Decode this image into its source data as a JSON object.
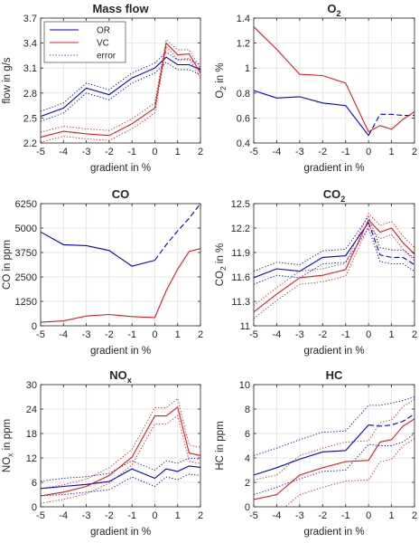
{
  "figure": {
    "legend": [
      {
        "label": "OR",
        "color": "#0000d6",
        "dash": "solid"
      },
      {
        "label": "VC",
        "color": "#e31a1c",
        "dash": "solid"
      },
      {
        "label": "error",
        "color": "#3a3ad6",
        "dash": "dotted"
      }
    ]
  },
  "chart_data": [
    {
      "type": "line",
      "title": "Mass flow",
      "title_sub": "",
      "xlabel": "gradient in %",
      "ylabel": "flow in g/s",
      "ylabel_sub": "",
      "ylabel_suffix": "",
      "xlim": [
        -5,
        2
      ],
      "ylim": [
        2.2,
        3.7
      ],
      "xticks": [
        -5,
        -4,
        -3,
        -2,
        -1,
        0,
        1,
        2
      ],
      "yticks": [
        2.2,
        2.5,
        2.8,
        3.1,
        3.4,
        3.7
      ],
      "grid": true,
      "legend": "top-left",
      "x": [
        -5,
        -4,
        -3,
        -2,
        -1,
        0,
        0.5,
        1,
        1.5,
        2
      ],
      "series": [
        {
          "name": "OR",
          "color": "#0000d6",
          "solid_upto": 9,
          "values": [
            2.52,
            2.62,
            2.86,
            2.78,
            2.98,
            3.1,
            3.23,
            3.14,
            3.14,
            3.08
          ],
          "err_hi": [
            2.58,
            2.68,
            2.92,
            2.84,
            3.04,
            3.16,
            3.29,
            3.2,
            3.2,
            3.14
          ],
          "err_lo": [
            2.46,
            2.56,
            2.8,
            2.72,
            2.92,
            3.04,
            3.17,
            3.08,
            3.08,
            3.02
          ]
        },
        {
          "name": "VC",
          "color": "#e31a1c",
          "solid_upto": 9,
          "values": [
            2.27,
            2.34,
            2.31,
            2.29,
            2.43,
            2.62,
            3.4,
            3.26,
            3.27,
            3.04
          ],
          "err_hi": [
            2.33,
            2.4,
            2.37,
            2.35,
            2.49,
            2.68,
            3.44,
            3.32,
            3.32,
            3.1
          ],
          "err_lo": [
            2.21,
            2.28,
            2.25,
            2.23,
            2.37,
            2.56,
            3.36,
            3.2,
            3.22,
            2.98
          ]
        }
      ]
    },
    {
      "type": "line",
      "title": "O",
      "title_sub": "2",
      "xlabel": "gradient in %",
      "ylabel": "O",
      "ylabel_sub": "2",
      "ylabel_suffix": " in %",
      "xlim": [
        -5,
        2
      ],
      "ylim": [
        0.4,
        1.4
      ],
      "xticks": [
        -5,
        -4,
        -3,
        -2,
        -1,
        0,
        1,
        2
      ],
      "yticks": [
        0.4,
        0.6,
        0.8,
        1,
        1.2,
        1.4
      ],
      "grid": true,
      "legend": "none",
      "x": [
        -5,
        -4,
        -3,
        -2,
        -1,
        0,
        0.5,
        1,
        1.5,
        2
      ],
      "series": [
        {
          "name": "OR",
          "color": "#0000d6",
          "solid_upto": 5,
          "values": [
            0.82,
            0.76,
            0.77,
            0.72,
            0.7,
            0.46,
            0.63,
            0.63,
            0.62,
            0.62
          ]
        },
        {
          "name": "VC",
          "color": "#e31a1c",
          "solid_upto": 9,
          "values": [
            1.33,
            1.15,
            0.95,
            0.94,
            0.88,
            0.49,
            0.54,
            0.51,
            0.59,
            0.65
          ]
        }
      ]
    },
    {
      "type": "line",
      "title": "CO",
      "title_sub": "",
      "xlabel": "gradient in %",
      "ylabel": "CO in ppm",
      "ylabel_sub": "",
      "ylabel_suffix": "",
      "xlim": [
        -5,
        2
      ],
      "ylim": [
        0,
        6250
      ],
      "xticks": [
        -5,
        -4,
        -3,
        -2,
        -1,
        0,
        1,
        2
      ],
      "yticks": [
        0,
        1250,
        2500,
        3750,
        5000,
        6250
      ],
      "grid": true,
      "legend": "none",
      "x": [
        -5,
        -4,
        -3,
        -2,
        -1,
        0,
        0.5,
        1,
        1.5,
        2
      ],
      "series": [
        {
          "name": "OR",
          "color": "#0000d6",
          "solid_upto": 5,
          "values": [
            4800,
            4150,
            4100,
            3850,
            3050,
            3350,
            4150,
            4850,
            5500,
            6250
          ]
        },
        {
          "name": "VC",
          "color": "#e31a1c",
          "solid_upto": 9,
          "values": [
            180,
            250,
            500,
            580,
            470,
            420,
            1800,
            2900,
            3800,
            3950
          ]
        }
      ]
    },
    {
      "type": "line",
      "title": "CO",
      "title_sub": "2",
      "xlabel": "gradient in %",
      "ylabel": "CO",
      "ylabel_sub": "2",
      "ylabel_suffix": " in %",
      "xlim": [
        -5,
        2
      ],
      "ylim": [
        11,
        12.5
      ],
      "xticks": [
        -5,
        -4,
        -3,
        -2,
        -1,
        0,
        1,
        2
      ],
      "yticks": [
        11,
        11.3,
        11.6,
        11.9,
        12.2,
        12.5
      ],
      "grid": true,
      "legend": "none",
      "x": [
        -5,
        -4,
        -3,
        -2,
        -1,
        0,
        0.5,
        1,
        1.5,
        2
      ],
      "series": [
        {
          "name": "OR",
          "color": "#0000d6",
          "solid_upto": 5,
          "values": [
            11.59,
            11.7,
            11.67,
            11.84,
            11.86,
            12.27,
            11.87,
            11.84,
            11.84,
            11.75
          ],
          "err_hi": [
            11.67,
            11.78,
            11.75,
            11.92,
            11.94,
            12.34,
            11.96,
            11.93,
            11.93,
            11.83
          ],
          "err_lo": [
            11.51,
            11.62,
            11.59,
            11.76,
            11.78,
            12.2,
            11.79,
            11.76,
            11.76,
            11.67
          ]
        },
        {
          "name": "VC",
          "color": "#e31a1c",
          "solid_upto": 9,
          "values": [
            11.17,
            11.39,
            11.59,
            11.62,
            11.69,
            12.3,
            12.15,
            12.2,
            12.02,
            11.88
          ],
          "err_hi": [
            11.25,
            11.47,
            11.67,
            11.7,
            11.77,
            12.38,
            12.23,
            12.28,
            12.1,
            11.96
          ],
          "err_lo": [
            11.09,
            11.31,
            11.51,
            11.54,
            11.61,
            12.22,
            12.07,
            12.12,
            11.94,
            11.8
          ]
        }
      ]
    },
    {
      "type": "line",
      "title": "NO",
      "title_sub": "x",
      "xlabel": "gradient in %",
      "ylabel": "NO",
      "ylabel_sub": "x",
      "ylabel_suffix": " in ppm",
      "xlim": [
        -5,
        2
      ],
      "ylim": [
        0,
        30
      ],
      "xticks": [
        -5,
        -4,
        -3,
        -2,
        -1,
        0,
        1,
        2
      ],
      "yticks": [
        0,
        6,
        12,
        18,
        24,
        30
      ],
      "grid": true,
      "legend": "none",
      "x": [
        -5,
        -4,
        -3,
        -2,
        -1,
        0,
        0.5,
        1,
        1.5,
        2
      ],
      "series": [
        {
          "name": "OR",
          "color": "#0000d6",
          "solid_upto": 9,
          "values": [
            4.5,
            5,
            5.5,
            6.2,
            9.3,
            7,
            9.3,
            8.7,
            10,
            9.7
          ],
          "err_hi": [
            6.3,
            7,
            7.4,
            8.2,
            11.3,
            9,
            11.3,
            10.7,
            12,
            11.7
          ],
          "err_lo": [
            2.7,
            3,
            3.6,
            4.2,
            7.3,
            5,
            7.3,
            6.7,
            8,
            7.7
          ]
        },
        {
          "name": "VC",
          "color": "#e31a1c",
          "solid_upto": 9,
          "values": [
            2.7,
            3.6,
            5,
            7.7,
            12.2,
            22.3,
            22.3,
            24.5,
            13.2,
            12.6
          ],
          "err_hi": [
            4.5,
            5.4,
            6.8,
            9.6,
            14.1,
            24.3,
            24.3,
            26.6,
            15.2,
            14.6
          ],
          "err_lo": [
            0.9,
            1.8,
            3.2,
            5.8,
            10.3,
            20.3,
            20.3,
            22.4,
            11.2,
            10.6
          ]
        }
      ]
    },
    {
      "type": "line",
      "title": "HC",
      "title_sub": "",
      "xlabel": "gradient in %",
      "ylabel": "HC in ppm",
      "ylabel_sub": "",
      "ylabel_suffix": "",
      "xlim": [
        -5,
        2
      ],
      "ylim": [
        0,
        10
      ],
      "xticks": [
        -5,
        -4,
        -3,
        -2,
        -1,
        0,
        1,
        2
      ],
      "yticks": [
        0,
        2,
        4,
        6,
        8,
        10
      ],
      "grid": true,
      "legend": "none",
      "x": [
        -5,
        -4,
        -3,
        -2,
        -1,
        0,
        0.5,
        1,
        1.5,
        2
      ],
      "series": [
        {
          "name": "OR",
          "color": "#0000d6",
          "solid_upto": 5,
          "values": [
            2.6,
            3.2,
            3.9,
            4.5,
            4.6,
            6.7,
            6.6,
            6.7,
            7.0,
            7.6
          ],
          "err_hi": [
            4.2,
            4.8,
            5.5,
            6.1,
            6.2,
            8.3,
            8.3,
            8.5,
            8.7,
            9.0
          ],
          "err_lo": [
            1.0,
            1.6,
            2.3,
            2.9,
            3.0,
            5.1,
            5.0,
            5.0,
            5.3,
            6.0
          ]
        },
        {
          "name": "VC",
          "color": "#e31a1c",
          "solid_upto": 9,
          "values": [
            0.6,
            1.0,
            2.6,
            3.2,
            3.7,
            3.8,
            5.3,
            5.5,
            6.6,
            7.2
          ],
          "err_hi": [
            2.2,
            2.6,
            4.2,
            4.8,
            5.3,
            5.4,
            6.9,
            7.1,
            8.2,
            8.8
          ],
          "err_lo": [
            -1.0,
            -0.6,
            1.0,
            1.6,
            2.1,
            2.2,
            3.7,
            3.9,
            5.0,
            5.6
          ]
        }
      ]
    }
  ]
}
